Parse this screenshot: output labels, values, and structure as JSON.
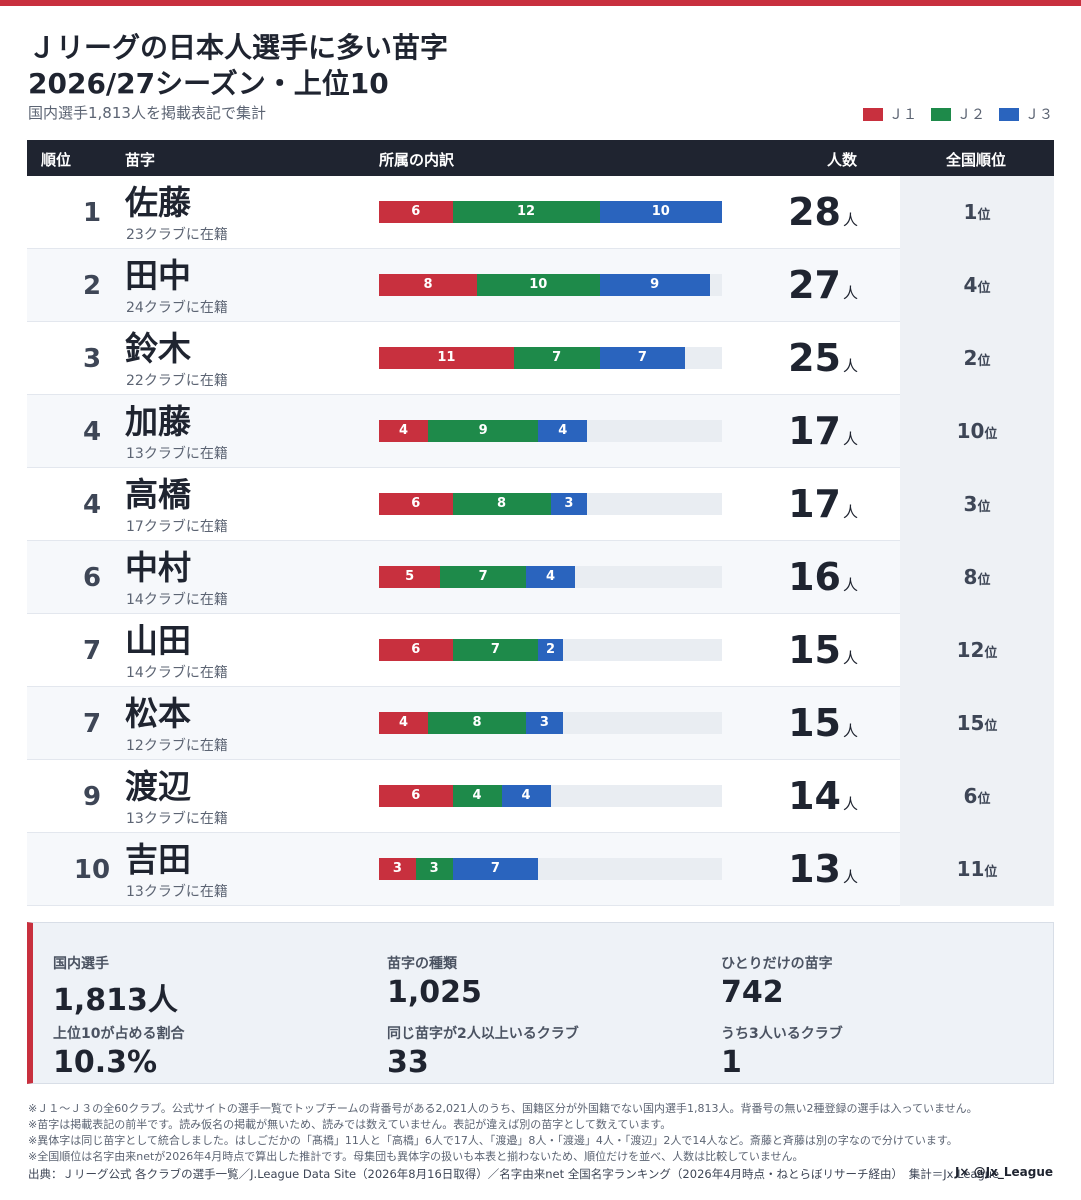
{
  "header": {
    "title_line1": "Ｊリーグの日本人選手に多い苗字",
    "title_line2": "2026/27シーズン・上位10",
    "subtitle": "国内選手1,813人を掲載表記で集計"
  },
  "legend": [
    {
      "label": "Ｊ１",
      "color": "#c8303e"
    },
    {
      "label": "Ｊ２",
      "color": "#1e8a4a"
    },
    {
      "label": "Ｊ３",
      "color": "#2a64be"
    }
  ],
  "columns": {
    "rank": "順位",
    "name": "苗字",
    "breakdown": "所属の内訳",
    "count": "人数",
    "national": "全国順位"
  },
  "count_unit": "人",
  "national_unit": "位",
  "chart_data": {
    "type": "bar",
    "stacked": true,
    "orientation": "horizontal",
    "scale_max": 28,
    "categories": [
      "佐藤",
      "田中",
      "鈴木",
      "加藤",
      "高橋",
      "中村",
      "山田",
      "松本",
      "渡辺",
      "吉田"
    ],
    "series": [
      {
        "name": "Ｊ１",
        "values": [
          6,
          8,
          11,
          4,
          6,
          5,
          6,
          4,
          6,
          3
        ]
      },
      {
        "name": "Ｊ２",
        "values": [
          12,
          10,
          7,
          9,
          8,
          7,
          7,
          8,
          4,
          3
        ]
      },
      {
        "name": "Ｊ３",
        "values": [
          10,
          9,
          7,
          4,
          3,
          4,
          2,
          3,
          4,
          7
        ]
      }
    ]
  },
  "rows": [
    {
      "rank": "1",
      "name": "佐藤",
      "clubs": "23クラブに在籍",
      "count": "28",
      "national": "1"
    },
    {
      "rank": "2",
      "name": "田中",
      "clubs": "24クラブに在籍",
      "count": "27",
      "national": "4"
    },
    {
      "rank": "3",
      "name": "鈴木",
      "clubs": "22クラブに在籍",
      "count": "25",
      "national": "2"
    },
    {
      "rank": "4",
      "name": "加藤",
      "clubs": "13クラブに在籍",
      "count": "17",
      "national": "10"
    },
    {
      "rank": "4",
      "name": "高橋",
      "clubs": "17クラブに在籍",
      "count": "17",
      "national": "3"
    },
    {
      "rank": "6",
      "name": "中村",
      "clubs": "14クラブに在籍",
      "count": "16",
      "national": "8"
    },
    {
      "rank": "7",
      "name": "山田",
      "clubs": "14クラブに在籍",
      "count": "15",
      "national": "12"
    },
    {
      "rank": "7",
      "name": "松本",
      "clubs": "12クラブに在籍",
      "count": "15",
      "national": "15"
    },
    {
      "rank": "9",
      "name": "渡辺",
      "clubs": "13クラブに在籍",
      "count": "14",
      "national": "6"
    },
    {
      "rank": "10",
      "name": "吉田",
      "clubs": "13クラブに在籍",
      "count": "13",
      "national": "11"
    }
  ],
  "stats": [
    {
      "label": "国内選手",
      "value": "1,813人"
    },
    {
      "label": "苗字の種類",
      "value": "1,025"
    },
    {
      "label": "ひとりだけの苗字",
      "value": "742"
    },
    {
      "label": "上位10が占める割合",
      "value": "10.3%"
    },
    {
      "label": "同じ苗字が2人以上いるクラブ",
      "value": "33"
    },
    {
      "label": "うち3人いるクラブ",
      "value": "1"
    }
  ],
  "notes": [
    "※Ｊ１～Ｊ３の全60クラブ。公式サイトの選手一覧でトップチームの背番号がある2,021人のうち、国籍区分が外国籍でない国内選手1,813人。背番号の無い2種登録の選手は入っていません。",
    "※苗字は掲載表記の前半です。読み仮名の掲載が無いため、読みでは数えていません。表記が違えば別の苗字として数えています。",
    "※異体字は同じ苗字として統合しました。はしごだかの「髙橋」11人と「高橋」6人で17人、「渡邉」8人・「渡邊」4人・「渡辺」2人で14人など。斎藤と斉藤は別の字なので分けています。",
    "※全国順位は名字由来netが2026年4月時点で算出した推計です。母集団も異体字の扱いも本表と揃わないため、順位だけを並べ、人数は比較していません。"
  ],
  "source": "出典：Ｊリーグ公式 各クラブの選手一覧／J.League Data Site（2026年8月16日取得）／名字由来net 全国名字ランキング（2026年4月時点・ねとらぼリサーチ経由）　集計＝Jx League",
  "credit": "J× @Jx_League"
}
